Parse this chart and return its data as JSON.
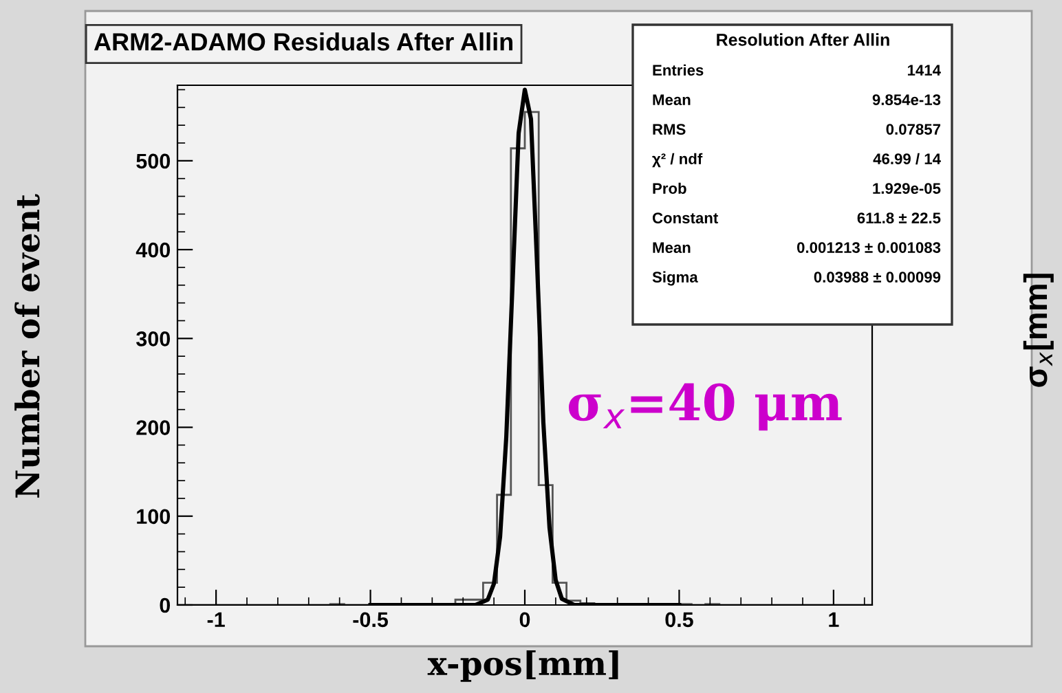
{
  "chart_data": {
    "type": "histogram",
    "title": "ARM2-ADAMO Residuals After Allin",
    "xlabel": "x-pos[mm]",
    "ylabel": "Number of event",
    "bins": [
      -1.125,
      -1.08,
      -1.035,
      -0.99,
      -0.945,
      -0.9,
      -0.855,
      -0.81,
      -0.765,
      -0.72,
      -0.675,
      -0.63,
      -0.585,
      -0.54,
      -0.495,
      -0.45,
      -0.405,
      -0.36,
      -0.315,
      -0.27,
      -0.225,
      -0.18,
      -0.135,
      -0.09,
      -0.045,
      0,
      0.045,
      0.09,
      0.135,
      0.18,
      0.225,
      0.27,
      0.315,
      0.36,
      0.405,
      0.45,
      0.495,
      0.54,
      0.585,
      0.63,
      0.675,
      0.72,
      0.765,
      0.81,
      0.855,
      0.9,
      0.945,
      0.99,
      1.035,
      1.08,
      1.125
    ],
    "series": [
      {
        "color": "#555555",
        "values": [
          0,
          0,
          0,
          0,
          0,
          0,
          0,
          0,
          0,
          0,
          0,
          1,
          0,
          0,
          0,
          1,
          0,
          0,
          0,
          0,
          6,
          6,
          25,
          124,
          514,
          555,
          135,
          25,
          5,
          2,
          0,
          0,
          0,
          0,
          0,
          0,
          1,
          0,
          1,
          0,
          0,
          0,
          0,
          0,
          0,
          0,
          0,
          0,
          0,
          0
        ]
      },
      {
        "type": "line",
        "color": "#000000",
        "x": [
          -0.5,
          -0.25,
          -0.16,
          -0.12,
          -0.1,
          -0.08,
          -0.06,
          -0.04,
          -0.02,
          0,
          0.02,
          0.04,
          0.06,
          0.08,
          0.1,
          0.12,
          0.16,
          0.25,
          0.5
        ],
        "values": [
          0,
          0,
          0,
          6,
          24,
          77,
          189,
          359,
          531,
          580,
          547,
          381,
          206,
          87,
          28,
          7,
          0,
          0,
          0
        ]
      }
    ],
    "xlim": [
      -1.125,
      1.125
    ],
    "ylim": [
      0,
      585
    ],
    "xticks": [
      -1,
      -0.5,
      0,
      0.5,
      1
    ],
    "yticks": [
      0,
      100,
      200,
      300,
      400,
      500
    ],
    "grid": false,
    "legend": false,
    "annotations": [
      "σ$_{x}$=40 μm",
      "σ$_{x}$[mm]",
      "Resolution After Allin",
      "Entries",
      "1414",
      "Mean",
      "9.854e-13",
      "RMS",
      "0.07857",
      "χ² / ndf",
      "46.99 / 14",
      "Prob",
      "1.929e-05",
      "Constant",
      "611.8 ± 22.5",
      "Mean",
      "0.001213 ± 0.001083",
      "Sigma",
      "0.03988 ± 0.00099"
    ]
  }
}
